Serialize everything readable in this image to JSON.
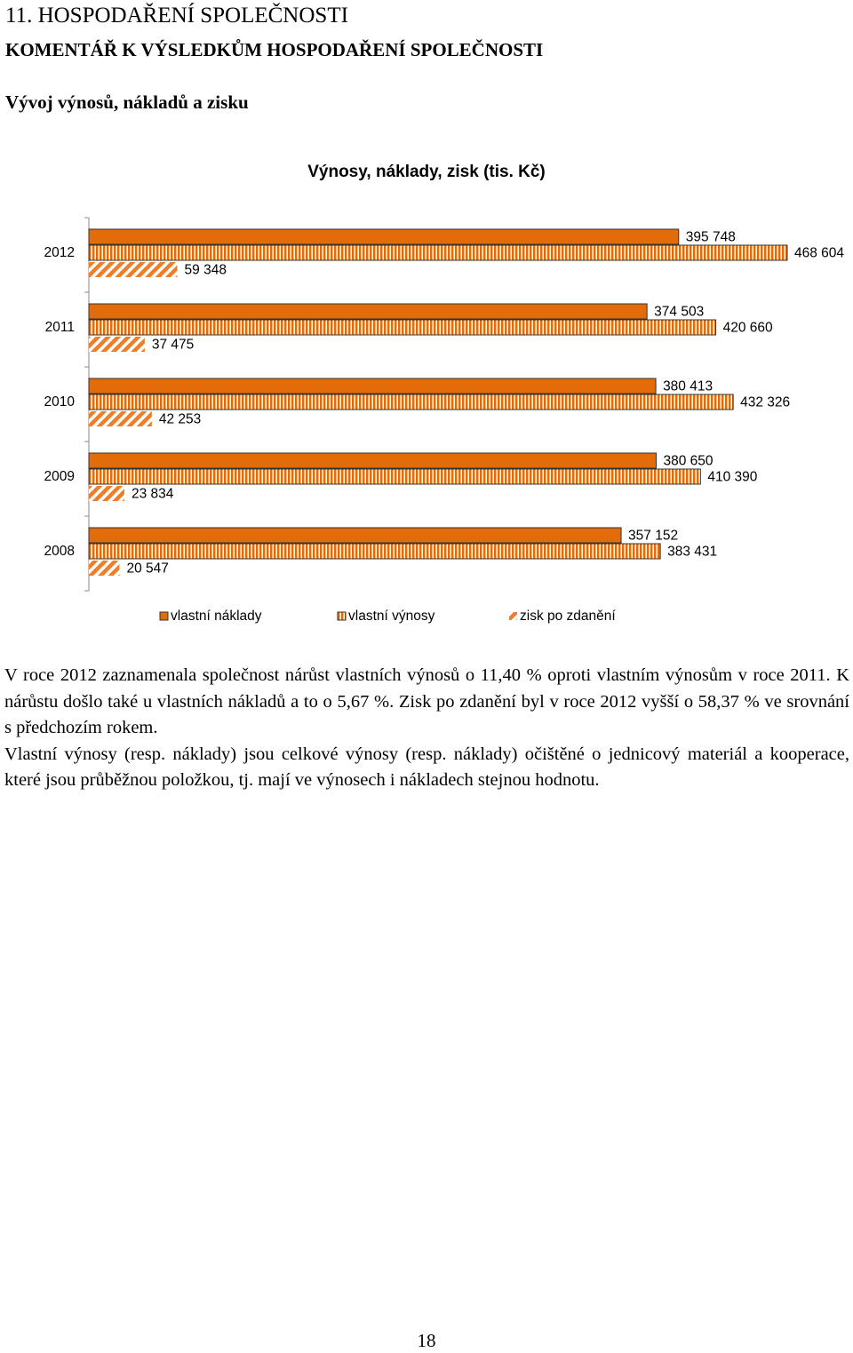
{
  "header": {
    "title": "11. HOSPODAŘENÍ SPOLEČNOSTI",
    "subtitle": "KOMENTÁŘ K VÝSLEDKŮM HOSPODAŘENÍ SPOLEČNOSTI",
    "section": "Vývoj výnosů, nákladů a zisku"
  },
  "chart_data": {
    "type": "bar",
    "orientation": "horizontal",
    "title": "Výnosy, náklady, zisk (tis. Kč)",
    "categories": [
      "2012",
      "2011",
      "2010",
      "2009",
      "2008"
    ],
    "series": [
      {
        "name": "vlastní náklady",
        "color": "#e36c0a",
        "pattern": "solid",
        "values": [
          395748,
          374503,
          380413,
          380650,
          357152
        ],
        "value_labels": [
          "395 748",
          "374 503",
          "380 413",
          "380 650",
          "357 152"
        ]
      },
      {
        "name": "vlastní výnosy",
        "color": "#e36c0a",
        "pattern": "vertical-stripes",
        "values": [
          468604,
          420660,
          432326,
          410390,
          383431
        ],
        "value_labels": [
          "468 604",
          "420 660",
          "432 326",
          "410 390",
          "383 431"
        ]
      },
      {
        "name": "zisk po zdanění",
        "color": "#f07d28",
        "pattern": "diagonal-hatch",
        "values": [
          59348,
          37475,
          42253,
          23834,
          20547
        ],
        "value_labels": [
          "59 348",
          "37 475",
          "42 253",
          "23 834",
          "20 547"
        ]
      }
    ],
    "legend": "bottom"
  },
  "body": {
    "paragraphs": [
      "V roce 2012 zaznamenala společnost nárůst vlastních výnosů o 11,40 % oproti vlastním výnosům v roce 2011. K nárůstu došlo také u vlastních nákladů a to o 5,67 %. Zisk po zdanění byl v roce 2012 vyšší o 58,37 % ve srovnání s předchozím rokem.",
      "Vlastní výnosy (resp. náklady) jsou celkové výnosy (resp. náklady) očištěné o jednicový materiál a kooperace, které jsou průběžnou položkou, tj. mají ve výnosech i nákladech stejnou hodnotu."
    ]
  },
  "footer": {
    "page_number": "18"
  }
}
